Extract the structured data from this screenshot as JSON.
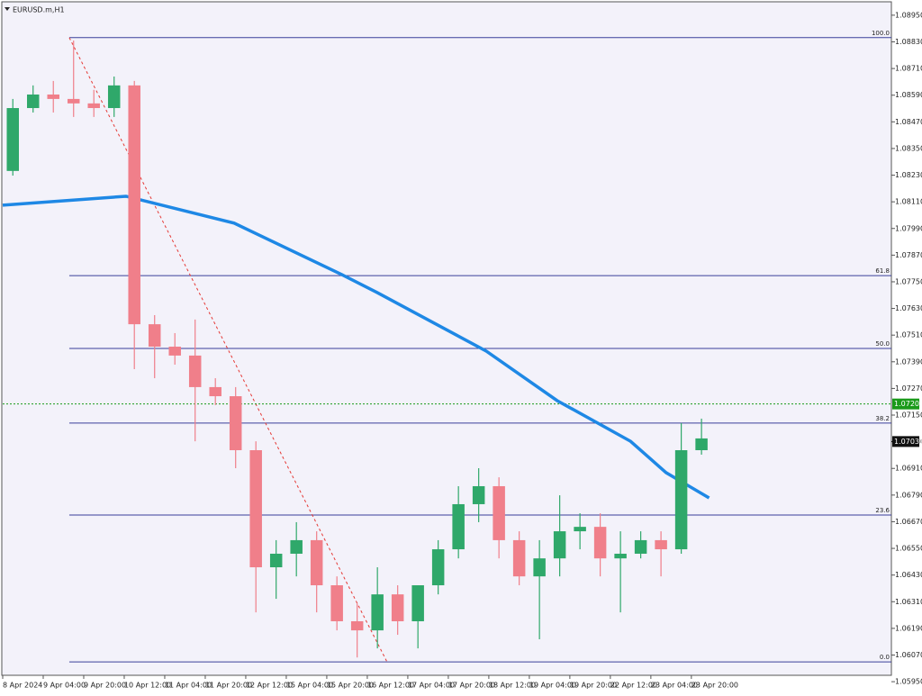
{
  "chart_data": {
    "type": "candlestick",
    "title": "EURUSD.m,H1",
    "up_color": "#2fa86a",
    "down_color": "#f07f8a",
    "xlim": [
      0,
      351
    ],
    "ylim": [
      1.05918,
      1.08986
    ],
    "xticks": [
      {
        "value": 0,
        "label": "8 Apr 2024"
      },
      {
        "value": 16,
        "label": "9 Apr 04:00"
      },
      {
        "value": 32,
        "label": "9 Apr 20:00"
      },
      {
        "value": 48,
        "label": "10 Apr 12:00"
      },
      {
        "value": 64,
        "label": "11 Apr 04:00"
      },
      {
        "value": 80,
        "label": "11 Apr 20:00"
      },
      {
        "value": 96,
        "label": "12 Apr 12:00"
      },
      {
        "value": 112,
        "label": "15 Apr 04:00"
      },
      {
        "value": 128,
        "label": "15 Apr 20:00"
      },
      {
        "value": 144,
        "label": "16 Apr 12:00"
      },
      {
        "value": 160,
        "label": "17 Apr 04:00"
      },
      {
        "value": 176,
        "label": "17 Apr 20:00"
      },
      {
        "value": 192,
        "label": "18 Apr 12:00"
      },
      {
        "value": 208,
        "label": "19 Apr 04:00"
      },
      {
        "value": 224,
        "label": "19 Apr 20:00"
      },
      {
        "value": 240,
        "label": "22 Apr 12:00"
      },
      {
        "value": 256,
        "label": "23 Apr 04:00"
      },
      {
        "value": 272,
        "label": "23 Apr 20:00"
      }
    ],
    "yticks": [
      {
        "value": 1.0895,
        "label": "1.08950"
      },
      {
        "value": 1.0883,
        "label": "1.08830"
      },
      {
        "value": 1.0871,
        "label": "1.08710"
      },
      {
        "value": 1.0859,
        "label": "1.08590"
      },
      {
        "value": 1.0847,
        "label": "1.08470"
      },
      {
        "value": 1.0835,
        "label": "1.08350"
      },
      {
        "value": 1.0823,
        "label": "1.08230"
      },
      {
        "value": 1.0811,
        "label": "1.08110"
      },
      {
        "value": 1.0799,
        "label": "1.07990"
      },
      {
        "value": 1.0787,
        "label": "1.07870"
      },
      {
        "value": 1.0775,
        "label": "1.07750"
      },
      {
        "value": 1.0763,
        "label": "1.07630"
      },
      {
        "value": 1.0751,
        "label": "1.07510"
      },
      {
        "value": 1.0739,
        "label": "1.07390"
      },
      {
        "value": 1.0727,
        "label": "1.07270"
      },
      {
        "value": 1.0715,
        "label": "1.07150"
      },
      {
        "value": 1.0703,
        "label": "1.07030"
      },
      {
        "value": 1.0691,
        "label": "1.06910"
      },
      {
        "value": 1.0679,
        "label": "1.06790"
      },
      {
        "value": 1.0667,
        "label": "1.06670"
      },
      {
        "value": 1.0655,
        "label": "1.06550"
      },
      {
        "value": 1.0643,
        "label": "1.06430"
      },
      {
        "value": 1.0631,
        "label": "1.06310"
      },
      {
        "value": 1.0619,
        "label": "1.06190"
      },
      {
        "value": 1.0607,
        "label": "1.06070"
      },
      {
        "value": 1.0595,
        "label": "1.05950"
      }
    ],
    "candles": {
      "x": [
        4,
        12,
        20,
        28,
        36,
        44,
        52,
        60,
        68,
        76,
        84,
        92,
        100,
        108,
        116,
        124,
        132,
        140,
        148,
        156,
        164,
        172,
        180,
        188,
        196,
        204,
        212,
        220,
        228,
        236,
        244,
        252,
        260,
        268,
        276
      ],
      "open": [
        1.08249,
        1.08532,
        1.08593,
        1.08573,
        1.08553,
        1.08532,
        1.08634,
        1.07559,
        1.07458,
        1.07418,
        1.07276,
        1.07235,
        1.06992,
        1.06465,
        1.06526,
        1.06587,
        1.06384,
        1.06222,
        1.06181,
        1.06343,
        1.06222,
        1.06384,
        1.06546,
        1.06749,
        1.0683,
        1.06587,
        1.06424,
        1.06505,
        1.06627,
        1.06647,
        1.06505,
        1.06526,
        1.06587,
        1.06546,
        1.06992
      ],
      "high": [
        1.08573,
        1.08634,
        1.08654,
        1.08836,
        1.08614,
        1.08674,
        1.08654,
        1.076,
        1.07519,
        1.0758,
        1.07316,
        1.07276,
        1.07032,
        1.06587,
        1.06668,
        1.06627,
        1.06424,
        1.06302,
        1.06465,
        1.06384,
        1.06384,
        1.06587,
        1.0683,
        1.06911,
        1.0687,
        1.06627,
        1.06587,
        1.06789,
        1.06708,
        1.06708,
        1.06627,
        1.06627,
        1.06627,
        1.07114,
        1.07134
      ],
      "low": [
        1.08228,
        1.08512,
        1.08512,
        1.08492,
        1.08492,
        1.08492,
        1.07357,
        1.07316,
        1.07377,
        1.07032,
        1.07195,
        1.06911,
        1.06262,
        1.06323,
        1.06424,
        1.06262,
        1.06181,
        1.06059,
        1.061,
        1.06161,
        1.061,
        1.06343,
        1.06505,
        1.06668,
        1.06505,
        1.06384,
        1.06141,
        1.06424,
        1.06546,
        1.06424,
        1.06262,
        1.06505,
        1.06424,
        1.06526,
        1.06972
      ],
      "close": [
        1.08532,
        1.08593,
        1.08573,
        1.08553,
        1.08532,
        1.08634,
        1.07559,
        1.07458,
        1.07418,
        1.07276,
        1.07235,
        1.06992,
        1.06465,
        1.06526,
        1.06587,
        1.06384,
        1.06222,
        1.06181,
        1.06343,
        1.06222,
        1.06384,
        1.06546,
        1.06749,
        1.0683,
        1.06587,
        1.06424,
        1.06505,
        1.06627,
        1.06647,
        1.06505,
        1.06526,
        1.06587,
        1.06546,
        1.06992,
        1.07045
      ]
    },
    "moving_average": {
      "color": "#1e88e5",
      "x": [
        0,
        48.7,
        91.4,
        134,
        148,
        191,
        219,
        248,
        262,
        279
      ],
      "values": [
        1.08095,
        1.08135,
        1.08014,
        1.07782,
        1.07701,
        1.07438,
        1.07215,
        1.07032,
        1.06891,
        1.06777
      ]
    },
    "fibonacci": {
      "color": "#3a3f9a",
      "trend_color": "#e53935",
      "x": [
        26.3,
        151.8
      ],
      "levels": [
        {
          "label": "100.0",
          "value": 1.08849
        },
        {
          "label": "61.8",
          "value": 1.07778
        },
        {
          "label": "50.0",
          "value": 1.0745
        },
        {
          "label": "38.2",
          "value": 1.07114
        },
        {
          "label": "23.6",
          "value": 1.067
        },
        {
          "label": "0.0",
          "value": 1.06039
        }
      ]
    },
    "alert_line": {
      "value": 1.072,
      "label": "1.07200",
      "color": "#1a9a1a"
    },
    "last_price": {
      "value": 1.07031,
      "label": "1.07031"
    }
  }
}
